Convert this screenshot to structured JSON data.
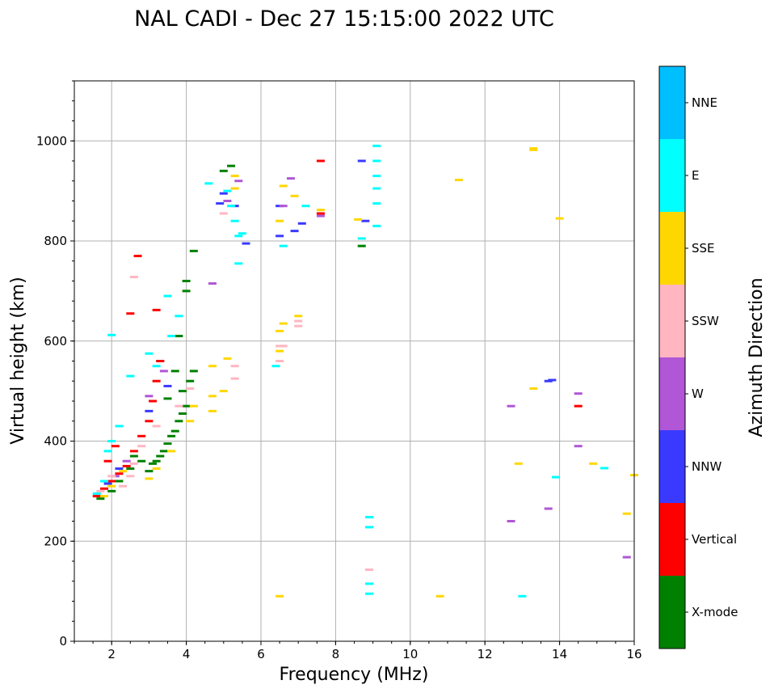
{
  "chart_data": {
    "type": "scatter",
    "title": "NAL CADI - Dec 27 15:15:00 2022 UTC",
    "xlabel": "Frequency (MHz)",
    "ylabel": "Virtual height (km)",
    "xlim": [
      1,
      16
    ],
    "ylim": [
      0,
      1120
    ],
    "xticks": [
      2,
      4,
      6,
      8,
      10,
      12,
      14,
      16
    ],
    "yticks": [
      0,
      200,
      400,
      600,
      800,
      1000
    ],
    "grid": true,
    "colorbar": {
      "label": "Azimuth Direction",
      "categories": [
        {
          "name": "X-mode",
          "color": "#008000"
        },
        {
          "name": "Vertical",
          "color": "#ff0000"
        },
        {
          "name": "NNW",
          "color": "#3a3aff"
        },
        {
          "name": "W",
          "color": "#b056d6"
        },
        {
          "name": "SSW",
          "color": "#ffb6c1"
        },
        {
          "name": "SSE",
          "color": "#ffd700"
        },
        {
          "name": "E",
          "color": "#00ffff"
        },
        {
          "name": "NNE",
          "color": "#00bfff"
        }
      ]
    },
    "series": [
      {
        "name": "X-mode",
        "points": [
          [
            1.7,
            285
          ],
          [
            2.0,
            300
          ],
          [
            2.2,
            320
          ],
          [
            2.5,
            345
          ],
          [
            2.6,
            370
          ],
          [
            2.8,
            360
          ],
          [
            3.0,
            340
          ],
          [
            3.1,
            355
          ],
          [
            3.2,
            360
          ],
          [
            3.3,
            370
          ],
          [
            3.4,
            380
          ],
          [
            3.5,
            395
          ],
          [
            3.6,
            410
          ],
          [
            3.7,
            420
          ],
          [
            3.8,
            440
          ],
          [
            3.9,
            455
          ],
          [
            4.0,
            470
          ],
          [
            4.1,
            520
          ],
          [
            4.2,
            540
          ],
          [
            3.5,
            485
          ],
          [
            3.7,
            540
          ],
          [
            3.8,
            610
          ],
          [
            4.0,
            700
          ],
          [
            4.0,
            720
          ],
          [
            4.2,
            780
          ],
          [
            5.2,
            950
          ],
          [
            5.0,
            940
          ],
          [
            8.7,
            790
          ],
          [
            3.3,
            560
          ],
          [
            3.9,
            500
          ]
        ]
      },
      {
        "name": "Vertical",
        "points": [
          [
            1.6,
            290
          ],
          [
            1.8,
            305
          ],
          [
            2.0,
            320
          ],
          [
            2.2,
            335
          ],
          [
            2.4,
            350
          ],
          [
            2.6,
            380
          ],
          [
            2.8,
            410
          ],
          [
            3.0,
            440
          ],
          [
            3.1,
            480
          ],
          [
            3.2,
            520
          ],
          [
            3.3,
            560
          ],
          [
            2.5,
            655
          ],
          [
            3.2,
            662
          ],
          [
            2.7,
            770
          ],
          [
            7.6,
            960
          ],
          [
            7.6,
            855
          ],
          [
            14.5,
            470
          ],
          [
            1.9,
            360
          ],
          [
            2.1,
            390
          ]
        ]
      },
      {
        "name": "NNW",
        "points": [
          [
            1.9,
            315
          ],
          [
            2.2,
            345
          ],
          [
            3.0,
            460
          ],
          [
            3.5,
            510
          ],
          [
            5.0,
            895
          ],
          [
            5.3,
            870
          ],
          [
            5.6,
            795
          ],
          [
            6.5,
            810
          ],
          [
            6.9,
            820
          ],
          [
            7.1,
            835
          ],
          [
            8.7,
            960
          ],
          [
            8.8,
            840
          ],
          [
            13.7,
            520
          ],
          [
            13.8,
            522
          ],
          [
            4.9,
            875
          ],
          [
            6.5,
            870
          ]
        ]
      },
      {
        "name": "W",
        "points": [
          [
            2.1,
            330
          ],
          [
            2.4,
            360
          ],
          [
            3.0,
            490
          ],
          [
            3.4,
            540
          ],
          [
            4.7,
            715
          ],
          [
            5.1,
            880
          ],
          [
            6.6,
            870
          ],
          [
            6.8,
            925
          ],
          [
            7.6,
            850
          ],
          [
            12.7,
            470
          ],
          [
            12.7,
            240
          ],
          [
            13.7,
            265
          ],
          [
            14.5,
            495
          ],
          [
            14.5,
            390
          ],
          [
            15.8,
            168
          ],
          [
            5.4,
            920
          ]
        ]
      },
      {
        "name": "SSW",
        "points": [
          [
            1.7,
            300
          ],
          [
            2.0,
            330
          ],
          [
            2.3,
            310
          ],
          [
            2.5,
            330
          ],
          [
            2.6,
            355
          ],
          [
            2.8,
            390
          ],
          [
            3.2,
            430
          ],
          [
            3.8,
            470
          ],
          [
            4.1,
            505
          ],
          [
            2.6,
            728
          ],
          [
            5.3,
            550
          ],
          [
            5.3,
            525
          ],
          [
            6.5,
            560
          ],
          [
            6.6,
            590
          ],
          [
            7.0,
            630
          ],
          [
            7.0,
            640
          ],
          [
            6.5,
            590
          ],
          [
            8.9,
            143
          ],
          [
            5.0,
            855
          ]
        ]
      },
      {
        "name": "SSE",
        "points": [
          [
            1.8,
            290
          ],
          [
            2.0,
            310
          ],
          [
            2.3,
            340
          ],
          [
            3.0,
            325
          ],
          [
            3.2,
            345
          ],
          [
            3.6,
            380
          ],
          [
            4.1,
            440
          ],
          [
            4.2,
            470
          ],
          [
            4.7,
            490
          ],
          [
            4.7,
            460
          ],
          [
            4.7,
            550
          ],
          [
            5.0,
            500
          ],
          [
            5.1,
            565
          ],
          [
            5.3,
            905
          ],
          [
            5.3,
            930
          ],
          [
            6.5,
            840
          ],
          [
            6.6,
            910
          ],
          [
            6.9,
            890
          ],
          [
            7.0,
            650
          ],
          [
            6.6,
            635
          ],
          [
            6.5,
            620
          ],
          [
            6.5,
            580
          ],
          [
            6.5,
            90
          ],
          [
            7.6,
            862
          ],
          [
            8.6,
            843
          ],
          [
            10.8,
            90
          ],
          [
            11.3,
            922
          ],
          [
            13.3,
            982
          ],
          [
            13.3,
            985
          ],
          [
            14.0,
            845
          ],
          [
            12.9,
            355
          ],
          [
            13.3,
            505
          ],
          [
            14.9,
            355
          ],
          [
            15.8,
            255
          ],
          [
            16.0,
            332
          ]
        ]
      },
      {
        "name": "E",
        "points": [
          [
            1.6,
            295
          ],
          [
            1.8,
            320
          ],
          [
            1.9,
            380
          ],
          [
            2.0,
            400
          ],
          [
            2.0,
            612
          ],
          [
            2.2,
            430
          ],
          [
            2.5,
            530
          ],
          [
            3.0,
            575
          ],
          [
            3.5,
            690
          ],
          [
            3.2,
            550
          ],
          [
            3.6,
            610
          ],
          [
            3.8,
            650
          ],
          [
            4.6,
            915
          ],
          [
            5.1,
            900
          ],
          [
            5.2,
            870
          ],
          [
            5.3,
            840
          ],
          [
            5.4,
            810
          ],
          [
            5.5,
            815
          ],
          [
            5.4,
            755
          ],
          [
            6.4,
            550
          ],
          [
            6.6,
            790
          ],
          [
            7.2,
            870
          ],
          [
            8.7,
            805
          ],
          [
            9.1,
            990
          ],
          [
            9.1,
            960
          ],
          [
            9.1,
            930
          ],
          [
            9.1,
            905
          ],
          [
            9.1,
            875
          ],
          [
            9.1,
            830
          ],
          [
            8.9,
            248
          ],
          [
            8.9,
            228
          ],
          [
            8.9,
            115
          ],
          [
            8.9,
            95
          ],
          [
            13.0,
            90
          ],
          [
            13.9,
            328
          ],
          [
            15.2,
            346
          ]
        ]
      }
    ]
  }
}
